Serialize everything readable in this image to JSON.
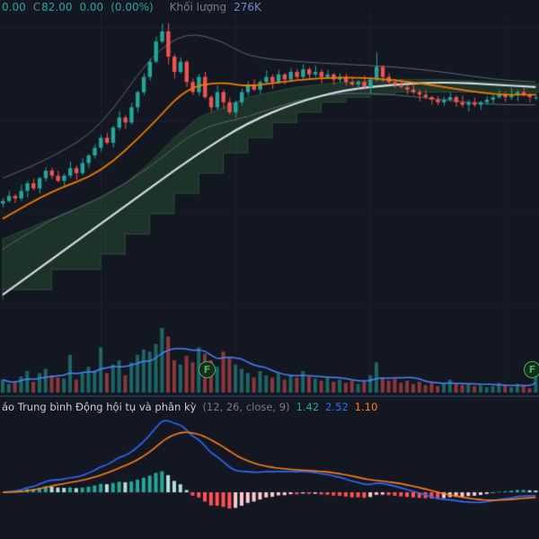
{
  "colors": {
    "background": "#131722",
    "up": "#26a69a",
    "down": "#ef5350",
    "label_text": "#787b86",
    "volume_value_text": "#7986cb",
    "orange_line": "#f57c00",
    "white_line": "#d8dce6",
    "band_line": "#5c6672",
    "cloud_fill": "rgba(76,175,80,0.18)",
    "cloud_edge": "rgba(76,175,80,0.30)",
    "volume_up": "rgba(38,166,154,0.55)",
    "volume_down": "rgba(239,83,80,0.55)",
    "volume_ma_line": "#4a84ff",
    "macd_line": "#2d6bff",
    "signal_line": "#ff7d1a",
    "hist_up_strong": "#26a69a",
    "hist_up_weak": "#b2dfdb",
    "hist_down_strong": "#ff5252",
    "hist_down_weak": "#fccbcd",
    "badge": "#4caf50",
    "divider": "#22344a",
    "grid": "rgba(170,180,200,0.05)"
  },
  "top_legend": {
    "item1": "0.00",
    "close_label": "C",
    "close_value": "82.00",
    "change_abs": "0.00",
    "change_pct": "(0.00%)",
    "volume_label": "Khối lượng",
    "volume_value": "276K"
  },
  "volume_pane": {
    "event_badge_label": "F"
  },
  "macd_pane": {
    "title": "áo Trung bình Động hội tụ và phân kỳ",
    "params": "(12, 26, close, 9)",
    "hist_value": "1.42",
    "macd_value": "2.52",
    "signal_value": "1.10"
  },
  "chart_data": {
    "type": "candlestick",
    "title": "",
    "xlabel": "",
    "ylabel": "",
    "price_axis": {
      "min": 40,
      "max": 98,
      "last_close": 82.0
    },
    "candles": {
      "open_first": 61.0,
      "closes": [
        61.5,
        62.5,
        62.0,
        63.5,
        65.0,
        64.0,
        66.0,
        67.5,
        66.5,
        65.5,
        66.5,
        68.0,
        67.0,
        69.0,
        70.5,
        72.0,
        74.0,
        73.0,
        76.0,
        78.0,
        77.0,
        80.0,
        83.0,
        86.0,
        89.0,
        93.0,
        95.0,
        90.0,
        87.0,
        89.0,
        85.0,
        83.0,
        86.0,
        82.0,
        80.0,
        83.0,
        81.0,
        79.0,
        81.0,
        83.0,
        84.5,
        83.5,
        85.0,
        86.0,
        85.0,
        86.5,
        85.5,
        87.0,
        86.0,
        87.5,
        86.5,
        87.0,
        86.0,
        86.5,
        85.5,
        86.0,
        85.0,
        84.5,
        85.0,
        84.0,
        85.5,
        88.0,
        86.0,
        85.0,
        84.5,
        84.0,
        83.5,
        83.0,
        82.5,
        82.0,
        81.5,
        81.0,
        81.5,
        82.0,
        81.0,
        80.5,
        81.0,
        80.5,
        81.0,
        81.5,
        82.0,
        82.5,
        82.0,
        82.5,
        83.0,
        82.5,
        82.0,
        82.0
      ],
      "wick_up_cycle": [
        0.6,
        1.0,
        0.4,
        1.3,
        0.5,
        0.9,
        0.3,
        0.7
      ],
      "wick_down_cycle": [
        0.7,
        0.3,
        0.9,
        0.5,
        1.3,
        0.4,
        1.0,
        0.6
      ],
      "wick_overrides": {
        "26": [
          1.5,
          0.4
        ],
        "27": [
          1.6,
          1.5
        ],
        "61": [
          2.8,
          0.4
        ]
      }
    },
    "overlays": {
      "ema_fast_orange": {
        "points": [
          [
            0,
            58
          ],
          [
            8,
            63.5
          ],
          [
            16,
            67
          ],
          [
            24,
            76
          ],
          [
            30,
            84
          ],
          [
            36,
            85
          ],
          [
            40,
            84
          ],
          [
            48,
            85.5
          ],
          [
            56,
            86
          ],
          [
            64,
            85.5
          ],
          [
            72,
            84
          ],
          [
            80,
            82.5
          ],
          [
            87,
            82.5
          ]
        ]
      },
      "ma_slow_white": {
        "points": [
          [
            0,
            43
          ],
          [
            8,
            50
          ],
          [
            16,
            57
          ],
          [
            24,
            64
          ],
          [
            32,
            71
          ],
          [
            40,
            77
          ],
          [
            48,
            81
          ],
          [
            56,
            83.5
          ],
          [
            64,
            84.5
          ],
          [
            72,
            85
          ],
          [
            80,
            84.5
          ],
          [
            87,
            84
          ]
        ]
      },
      "band_upper_gray": {
        "points": [
          [
            0,
            66
          ],
          [
            8,
            70
          ],
          [
            16,
            76
          ],
          [
            24,
            90
          ],
          [
            30,
            95
          ],
          [
            36,
            93
          ],
          [
            40,
            90
          ],
          [
            48,
            89
          ],
          [
            56,
            88.5
          ],
          [
            64,
            88
          ],
          [
            72,
            87
          ],
          [
            80,
            85.5
          ],
          [
            87,
            85
          ]
        ]
      },
      "band_lower_gray": {
        "points": [
          [
            0,
            52
          ],
          [
            8,
            58
          ],
          [
            16,
            62
          ],
          [
            24,
            68
          ],
          [
            32,
            76
          ],
          [
            40,
            78
          ],
          [
            48,
            81.5
          ],
          [
            56,
            83
          ],
          [
            64,
            82.5
          ],
          [
            72,
            81.5
          ],
          [
            80,
            80.5
          ],
          [
            87,
            80.5
          ]
        ]
      },
      "ichimoku_cloud": {
        "top": [
          [
            0,
            54
          ],
          [
            8,
            58
          ],
          [
            16,
            62
          ],
          [
            20,
            65
          ],
          [
            24,
            69
          ],
          [
            28,
            74
          ],
          [
            32,
            78
          ],
          [
            36,
            80
          ],
          [
            40,
            82
          ],
          [
            44,
            83
          ],
          [
            48,
            84
          ],
          [
            56,
            85
          ],
          [
            64,
            85.5
          ],
          [
            72,
            85.5
          ],
          [
            80,
            85
          ],
          [
            88,
            84.5
          ]
        ],
        "bottom": [
          [
            0,
            42
          ],
          [
            8,
            44
          ],
          [
            16,
            48
          ],
          [
            20,
            51
          ],
          [
            24,
            55
          ],
          [
            28,
            59
          ],
          [
            32,
            63
          ],
          [
            36,
            67
          ],
          [
            40,
            71
          ],
          [
            44,
            74
          ],
          [
            48,
            77
          ],
          [
            52,
            79
          ],
          [
            56,
            81
          ],
          [
            60,
            82
          ],
          [
            64,
            82.5
          ],
          [
            72,
            83
          ],
          [
            80,
            83
          ],
          [
            88,
            83
          ]
        ]
      }
    },
    "volume": {
      "unit": "K",
      "ma_window": 8,
      "values": [
        120,
        80,
        90,
        150,
        200,
        100,
        180,
        220,
        160,
        140,
        130,
        350,
        120,
        180,
        240,
        200,
        420,
        180,
        260,
        300,
        160,
        280,
        350,
        400,
        380,
        450,
        600,
        520,
        300,
        260,
        340,
        280,
        420,
        360,
        300,
        240,
        380,
        320,
        260,
        220,
        180,
        140,
        200,
        160,
        140,
        180,
        120,
        160,
        140,
        200,
        150,
        130,
        110,
        140,
        100,
        120,
        90,
        110,
        80,
        100,
        160,
        280,
        140,
        110,
        130,
        90,
        110,
        80,
        100,
        70,
        90,
        60,
        80,
        120,
        90,
        70,
        80,
        60,
        70,
        50,
        60,
        90,
        70,
        50,
        80,
        60,
        40,
        276
      ]
    },
    "macd": {
      "fast": 12,
      "slow": 26,
      "signal": 9,
      "source": "close",
      "last_histogram": 1.42,
      "last_macd": 2.52,
      "last_signal": 1.1
    },
    "event_flags": {
      "bar_indices": [
        33,
        86
      ],
      "label": "F"
    }
  }
}
